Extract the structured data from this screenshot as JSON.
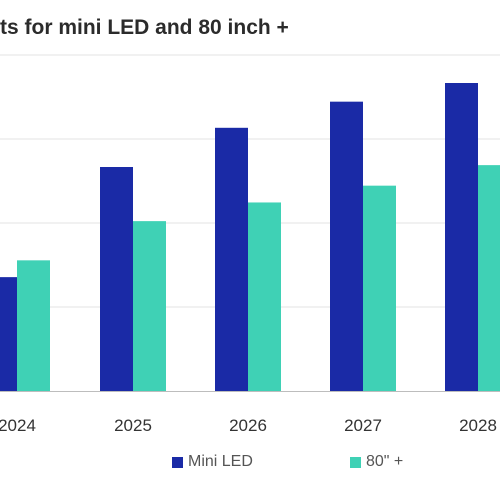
{
  "chart_data": {
    "type": "bar",
    "title": "ts for mini LED and 80 inch +",
    "categories": [
      "2024",
      "2025",
      "2026",
      "2027",
      "2028"
    ],
    "series": [
      {
        "name": "Mini LED",
        "color": "#1a2aa6",
        "values": [
          61,
          120,
          141,
          155,
          165
        ]
      },
      {
        "name": "80\" +",
        "color": "#3fd1b5",
        "values": [
          70,
          91,
          101,
          110,
          121
        ]
      }
    ],
    "ylim": [
      0,
      180
    ],
    "grid": true,
    "legend": "bottom"
  }
}
